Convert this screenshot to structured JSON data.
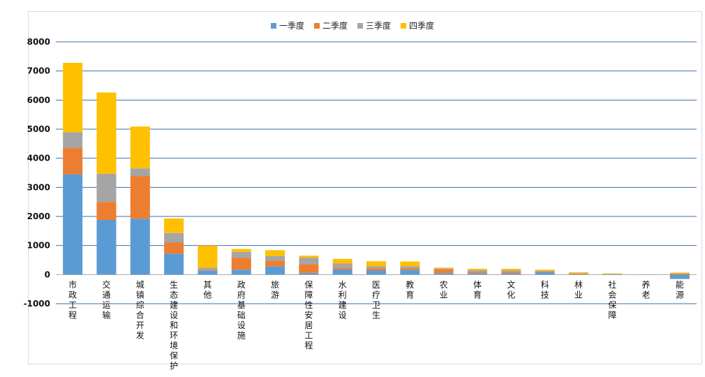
{
  "chart_data": {
    "type": "bar",
    "stacked": true,
    "title": "",
    "xlabel": "",
    "ylabel": "",
    "ylim": [
      -1000,
      8000
    ],
    "yticks": [
      -1000,
      0,
      1000,
      2000,
      3000,
      4000,
      5000,
      6000,
      7000,
      8000
    ],
    "grid": true,
    "legend_position": "top-center",
    "categories": [
      "市政工程",
      "交通运输",
      "城镇综合开发",
      "生态建设和环境保护",
      "其他",
      "政府基础设施",
      "旅游",
      "保障性安居工程",
      "水利建设",
      "医疗卫生",
      "教育",
      "农业",
      "体育",
      "文化",
      "科技",
      "林业",
      "社会保障",
      "养老",
      "能源"
    ],
    "series": [
      {
        "name": "一季度",
        "color": "#5b9bd5",
        "values": [
          3450,
          1880,
          1920,
          720,
          130,
          170,
          280,
          60,
          180,
          140,
          150,
          50,
          50,
          50,
          80,
          10,
          10,
          0,
          -150
        ]
      },
      {
        "name": "二季度",
        "color": "#ed7d31",
        "values": [
          900,
          620,
          1470,
          380,
          20,
          410,
          200,
          300,
          60,
          70,
          50,
          130,
          50,
          50,
          20,
          20,
          0,
          0,
          30
        ]
      },
      {
        "name": "三季度",
        "color": "#a5a5a5",
        "values": [
          540,
          970,
          260,
          330,
          90,
          200,
          160,
          220,
          140,
          80,
          90,
          30,
          50,
          40,
          30,
          20,
          10,
          10,
          10
        ]
      },
      {
        "name": "四季度",
        "color": "#ffc000",
        "values": [
          2390,
          2790,
          1440,
          500,
          760,
          100,
          200,
          70,
          160,
          170,
          160,
          30,
          50,
          60,
          40,
          30,
          20,
          0,
          30
        ]
      }
    ]
  }
}
